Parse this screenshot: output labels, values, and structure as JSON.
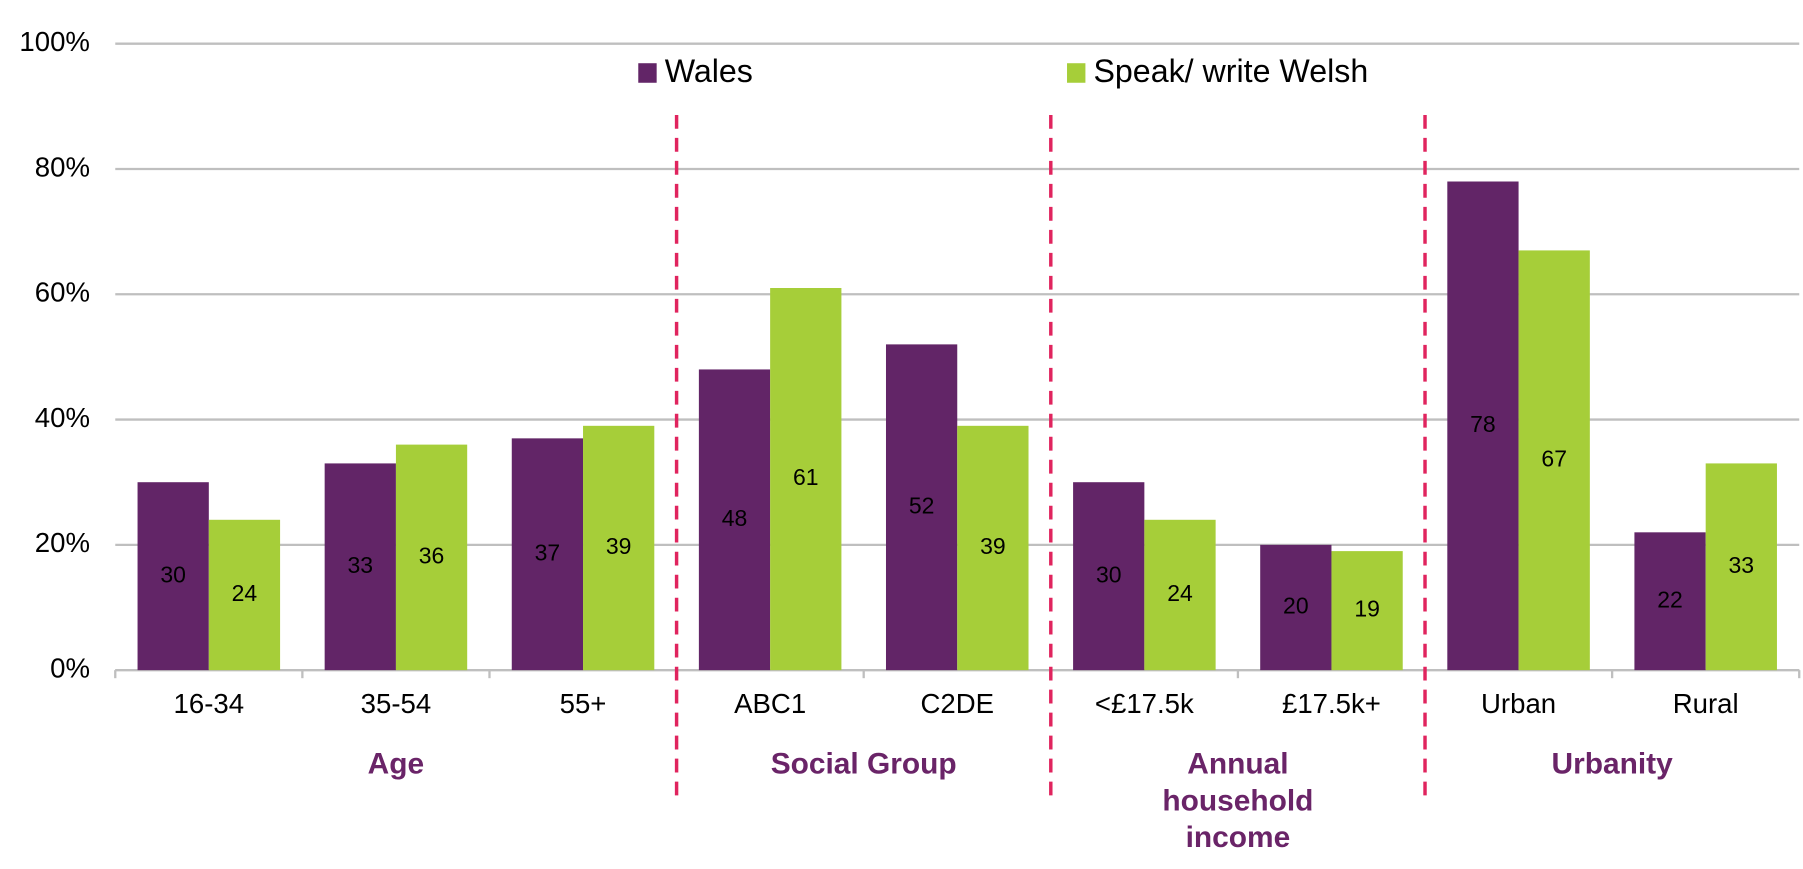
{
  "chart_data": {
    "type": "bar",
    "categories": [
      "16-34",
      "35-54",
      "55+",
      "ABC1",
      "C2DE",
      "<£17.5k",
      "£17.5k+",
      "Urban",
      "Rural"
    ],
    "series": [
      {
        "name": "Wales",
        "color": "#622567",
        "values": [
          30,
          33,
          37,
          48,
          52,
          30,
          20,
          78,
          22
        ]
      },
      {
        "name": "Speak/ write Welsh",
        "color": "#a6ce39",
        "values": [
          24,
          36,
          39,
          61,
          39,
          24,
          19,
          67,
          33
        ]
      }
    ],
    "ylim": [
      0,
      100
    ],
    "yticks": [
      {
        "value": 0,
        "label": "0%"
      },
      {
        "value": 20,
        "label": "20%"
      },
      {
        "value": 40,
        "label": "40%"
      },
      {
        "value": 60,
        "label": "60%"
      },
      {
        "value": 80,
        "label": "80%"
      },
      {
        "value": 100,
        "label": "100%"
      }
    ],
    "grid": true,
    "legend": "top",
    "groups": [
      {
        "label": "Age",
        "categories": [
          "16-34",
          "35-54",
          "55+"
        ]
      },
      {
        "label": "Social Group",
        "categories": [
          "ABC1",
          "C2DE"
        ]
      },
      {
        "label": "Annual household income",
        "categories": [
          "<£17.5k",
          "£17.5k+"
        ]
      },
      {
        "label": "Urbanity",
        "categories": [
          "Urban",
          "Rural"
        ]
      }
    ]
  }
}
